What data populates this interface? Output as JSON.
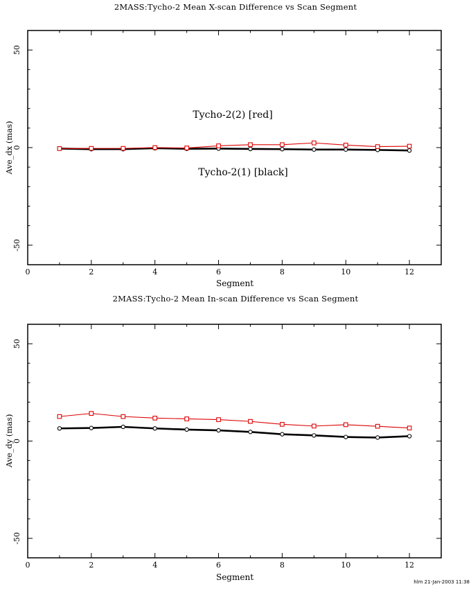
{
  "page": {
    "timestamp": "hlm 21-Jan-2003 11:38",
    "background": "#ffffff",
    "red_color": "#dd0000",
    "black_color": "#000000"
  },
  "chart_data": [
    {
      "type": "line",
      "title": "2MASS:Tycho-2 Mean X-scan Difference vs Scan Segment",
      "xlabel": "Segment",
      "ylabel": "Ave_dx (mas)",
      "x": [
        1,
        2,
        3,
        4,
        5,
        6,
        7,
        8,
        9,
        10,
        11,
        12
      ],
      "xlim": [
        0,
        13
      ],
      "ylim": [
        -60,
        60
      ],
      "grid": false,
      "legend_position": "none",
      "xticks_major": [
        0,
        2,
        4,
        6,
        8,
        10,
        12
      ],
      "xticks_minor": [
        1,
        3,
        5,
        7,
        9,
        11
      ],
      "yticks_major": [
        -50,
        0,
        50
      ],
      "yticks_minor": [
        -40,
        -30,
        -20,
        -10,
        10,
        20,
        30,
        40
      ],
      "series": [
        {
          "name": "Tycho-2(1)",
          "color": "#000000",
          "marker": "circle",
          "line_width": 2.6,
          "values": [
            -0.5,
            -0.8,
            -0.8,
            -0.3,
            -0.6,
            -0.5,
            -0.7,
            -0.8,
            -1.0,
            -1.0,
            -1.2,
            -1.5
          ]
        },
        {
          "name": "Tycho-2(2)",
          "color": "#dd0000",
          "marker": "square",
          "line_width": 1.1,
          "values": [
            -0.5,
            -0.4,
            -0.4,
            0.0,
            -0.2,
            0.9,
            1.5,
            1.5,
            2.4,
            1.3,
            0.5,
            0.7
          ]
        }
      ],
      "annotations": [
        {
          "text": "Tycho-2(2) [red]",
          "x": 6.45,
          "y": 16.7
        },
        {
          "text": "Tycho-2(1) [black]",
          "x": 6.8,
          "y": -12.8
        }
      ]
    },
    {
      "type": "line",
      "title": "2MASS:Tycho-2 Mean In-scan Difference vs Scan Segment",
      "xlabel": "Segment",
      "ylabel": "Ave_dy (mas)",
      "x": [
        1,
        2,
        3,
        4,
        5,
        6,
        7,
        8,
        9,
        10,
        11,
        12
      ],
      "xlim": [
        0,
        13
      ],
      "ylim": [
        -60,
        60
      ],
      "grid": false,
      "legend_position": "none",
      "xticks_major": [
        0,
        2,
        4,
        6,
        8,
        10,
        12
      ],
      "xticks_minor": [
        1,
        3,
        5,
        7,
        9,
        11
      ],
      "yticks_major": [
        -50,
        0,
        50
      ],
      "yticks_minor": [
        -40,
        -30,
        -20,
        -10,
        10,
        20,
        30,
        40
      ],
      "series": [
        {
          "name": "Tycho-2(1)",
          "color": "#000000",
          "marker": "circle",
          "line_width": 2.6,
          "values": [
            6.5,
            6.7,
            7.3,
            6.5,
            5.9,
            5.5,
            4.7,
            3.5,
            2.9,
            2.1,
            1.8,
            2.5
          ]
        },
        {
          "name": "Tycho-2(2)",
          "color": "#dd0000",
          "marker": "square",
          "line_width": 1.1,
          "values": [
            12.6,
            14.2,
            12.6,
            11.8,
            11.4,
            11.0,
            10.1,
            8.6,
            7.7,
            8.4,
            7.6,
            6.7
          ]
        }
      ],
      "annotations": []
    }
  ]
}
